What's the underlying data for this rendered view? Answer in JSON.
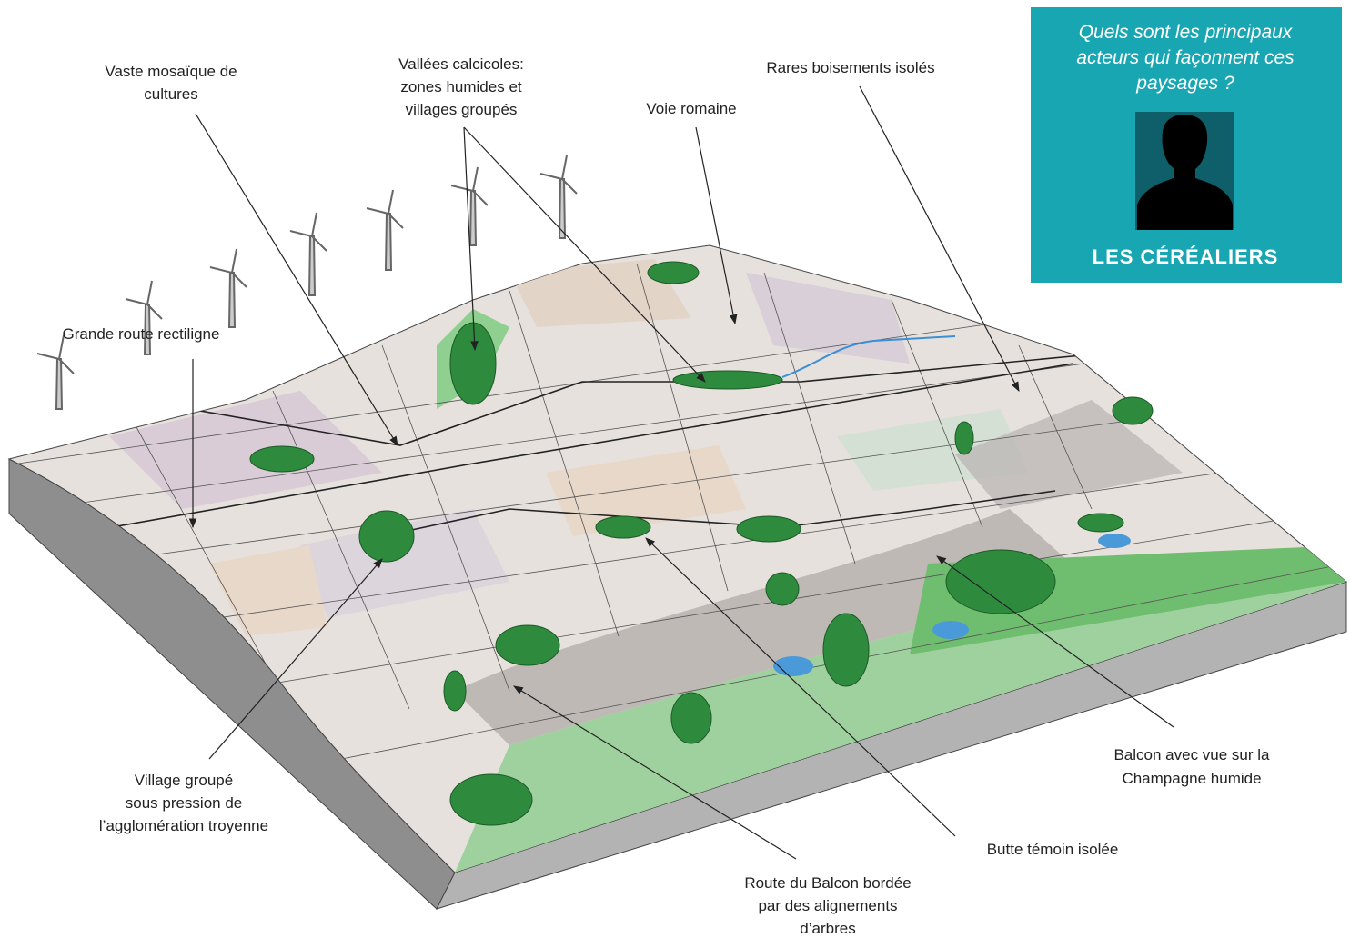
{
  "annotations": [
    {
      "lines": [
        "Vaste mosaïque de",
        "cultures"
      ]
    },
    {
      "lines": [
        "Vallées calcicoles:",
        "zones humides et",
        "villages groupés"
      ]
    },
    {
      "lines": [
        "Voie romaine"
      ]
    },
    {
      "lines": [
        "Rares boisements isolés"
      ]
    },
    {
      "lines": [
        "Grande route rectiligne"
      ]
    },
    {
      "lines": [
        "Village groupé",
        "sous pression de",
        "l’agglomération troyenne"
      ]
    },
    {
      "lines": [
        "Route du Balcon bordée",
        "par des alignements",
        "d’arbres"
      ]
    },
    {
      "lines": [
        "Butte témoin isolée"
      ]
    },
    {
      "lines": [
        "Balcon avec vue sur la",
        "Champagne humide"
      ]
    }
  ],
  "panel": {
    "question": [
      "Quels sont les principaux",
      "acteurs qui façonnent ces",
      "paysages ?"
    ],
    "title": "LES CÉRÉALIERS"
  }
}
